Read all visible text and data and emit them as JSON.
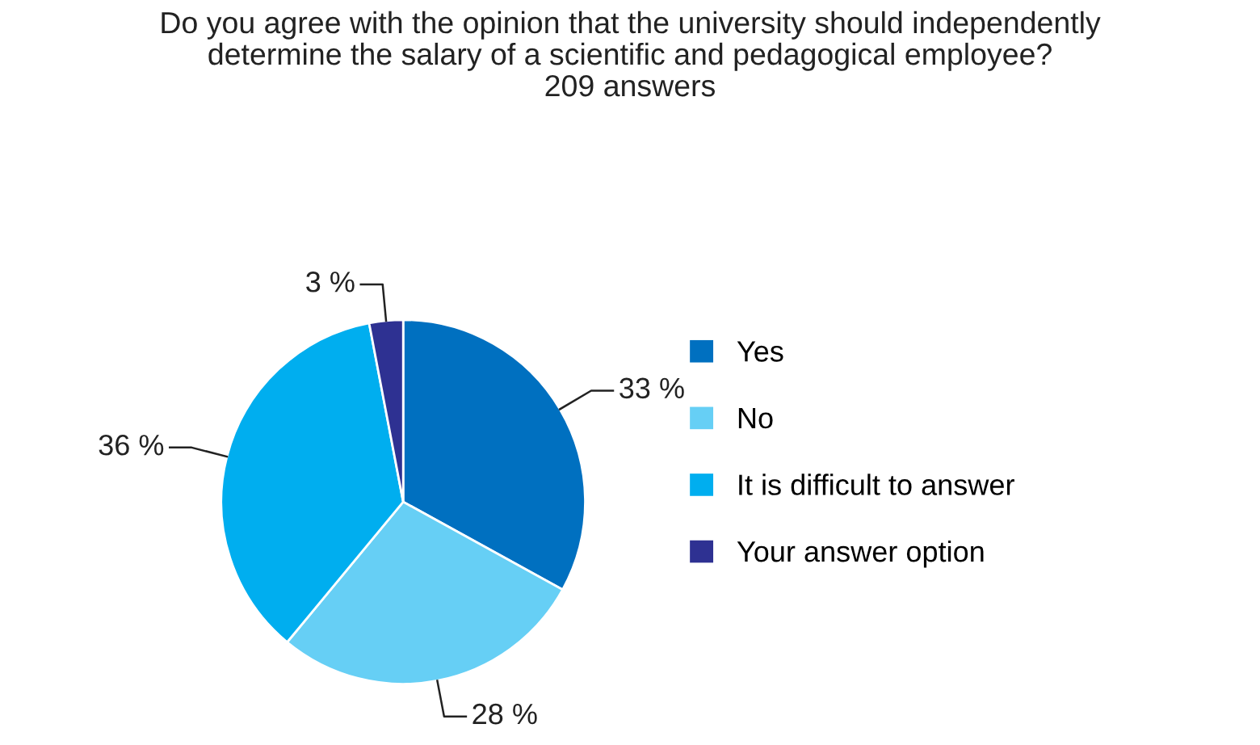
{
  "chart_data": {
    "type": "pie",
    "title": "Do you agree with the opinion that the university should independently\ndetermine the salary of a scientific and pedagogical employee?\n209 answers",
    "categories": [
      "Yes",
      "No",
      "It is difficult to answer",
      "Your answer option"
    ],
    "values": [
      33,
      28,
      36,
      3
    ],
    "colors": [
      "#0070c0",
      "#66cff5",
      "#00aeef",
      "#2e3192"
    ],
    "value_labels": [
      "33 %",
      "28 %",
      "36 %",
      "3 %"
    ],
    "legend": "right"
  }
}
